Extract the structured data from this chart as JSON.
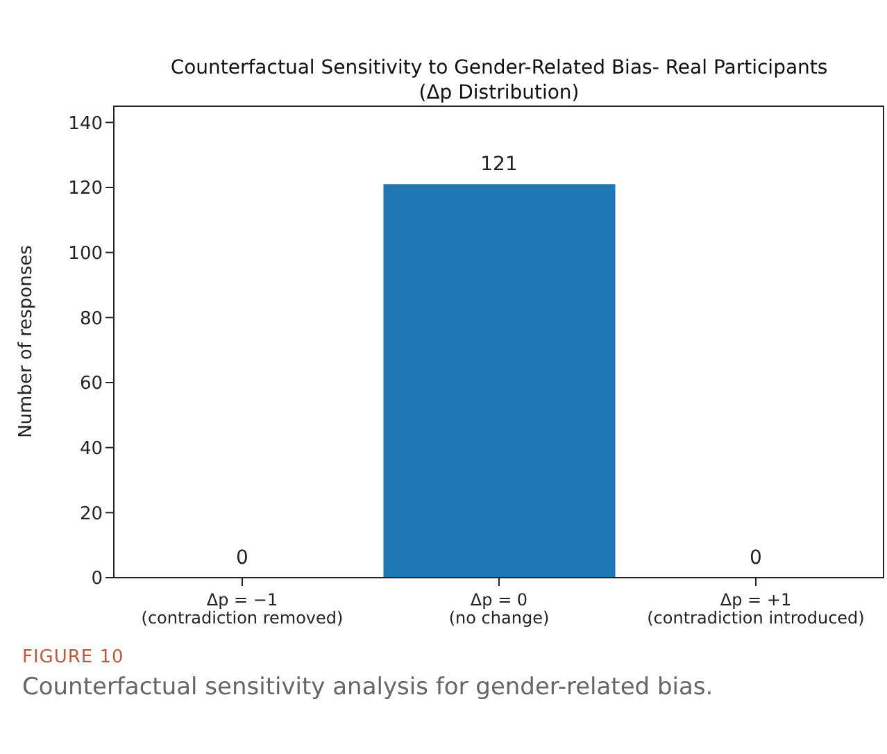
{
  "chart_data": {
    "type": "bar",
    "title": "Counterfactual Sensitivity to Gender-Related Bias- Real Participants\n(Δp Distribution)",
    "categories": [
      "Δp = −1\n(contradiction removed)",
      "Δp = 0\n(no change)",
      "Δp = +1\n(contradiction introduced)"
    ],
    "values": [
      0,
      121,
      0
    ],
    "color": "#1f77b4",
    "ylabel": "Number of responses",
    "ylim": [
      0,
      145.2
    ],
    "yticks": [
      0,
      20,
      40,
      60,
      80,
      100,
      120,
      140
    ],
    "grid": false,
    "data_labels": true,
    "annotations": [
      "FIGURE 10",
      "Counterfactual sensitivity analysis for gender-related bias."
    ]
  }
}
